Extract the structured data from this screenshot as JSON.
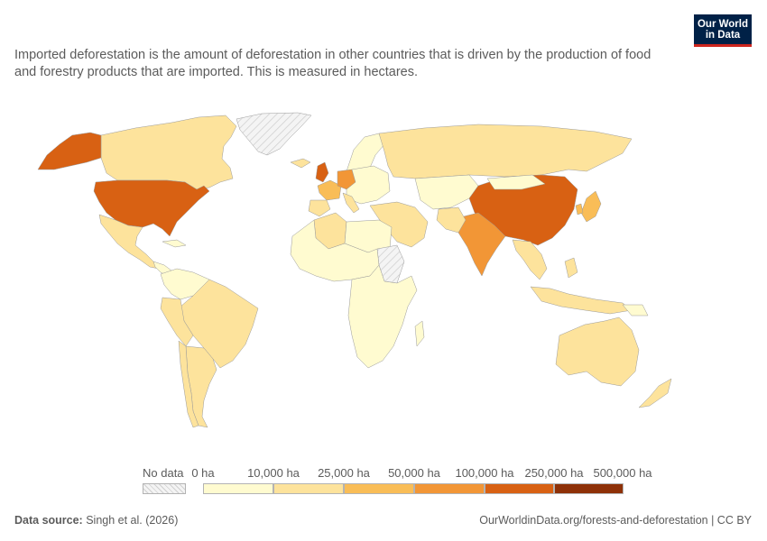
{
  "subtitle": "Imported deforestation is the amount of deforestation in other countries that is driven by the production of food and forestry products that are imported. This is measured in hectares.",
  "logo": {
    "line1": "Our World",
    "line2": "in Data"
  },
  "legend": {
    "no_data_label": "No data",
    "bins": [
      "0 ha",
      "10,000 ha",
      "25,000 ha",
      "50,000 ha",
      "100,000 ha",
      "250,000 ha",
      "500,000 ha"
    ],
    "colors": [
      "#fffbd0",
      "#fde39c",
      "#f9bd57",
      "#f29636",
      "#d86113",
      "#8e3108"
    ],
    "no_data_color": "#eeeeee"
  },
  "footer": {
    "source_label": "Data source:",
    "source": "Singh et al. (2026)",
    "url_license": "OurWorldinData.org/forests-and-deforestation | CC BY"
  }
}
